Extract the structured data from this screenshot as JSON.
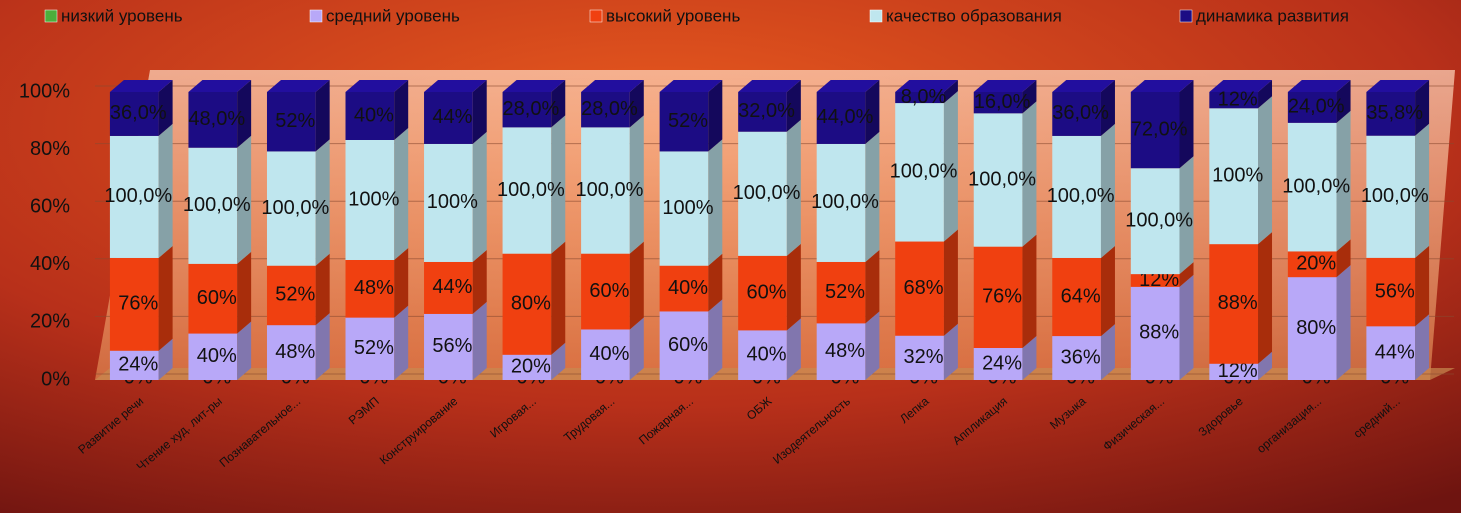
{
  "chart_data": {
    "type": "bar",
    "stacked": "percent",
    "categories": [
      "Развитие речи",
      "Чтение худ. лит-ры",
      "Познавательное...",
      "РЭМП",
      "Конструирование",
      "Игровая...",
      "Трудовая...",
      "Пожарная...",
      "ОБЖ",
      "Изодеятельность",
      "Лепка",
      "Аппликация",
      "Музыка",
      "Физическая...",
      "Здоровье",
      "организация...",
      "средний..."
    ],
    "series": [
      {
        "name": "низкий уровень",
        "color": "#4cae3c",
        "values": [
          0,
          0,
          0,
          0,
          0,
          0,
          0,
          0,
          0,
          0,
          0,
          0,
          0,
          0,
          0,
          0,
          0
        ],
        "value_labels": [
          "0%",
          "0%",
          "0%",
          "0%",
          "0%",
          "0%",
          "0%",
          "0%",
          "0%",
          "0%",
          "0%",
          "0%",
          "0%",
          "0%",
          "0%",
          "0%",
          "0%"
        ]
      },
      {
        "name": "средний уровень",
        "color": "#b8a8f8",
        "values": [
          24,
          40,
          48,
          52,
          56,
          20,
          40,
          60,
          40,
          48,
          32,
          24,
          36,
          88,
          12,
          80,
          44
        ],
        "value_labels": [
          "24%",
          "40%",
          "48%",
          "52%",
          "56%",
          "20%",
          "40%",
          "60%",
          "40%",
          "48%",
          "32%",
          "24%",
          "36%",
          "88%",
          "12%",
          "80%",
          "44%"
        ]
      },
      {
        "name": "высокий уровень",
        "color": "#f04010",
        "values": [
          76,
          60,
          52,
          48,
          44,
          80,
          60,
          40,
          60,
          52,
          68,
          76,
          64,
          12,
          88,
          20,
          56
        ],
        "value_labels": [
          "76%",
          "60%",
          "52%",
          "48%",
          "44%",
          "80%",
          "60%",
          "40%",
          "60%",
          "52%",
          "68%",
          "76%",
          "64%",
          "12%",
          "88%",
          "20%",
          "56%"
        ]
      },
      {
        "name": "качество образования",
        "color": "#bfe6ee",
        "values": [
          100,
          100,
          100,
          100,
          100,
          100,
          100,
          100,
          100,
          100,
          100,
          100,
          100,
          100,
          100,
          100,
          100
        ],
        "value_labels": [
          "100,0%",
          "100,0%",
          "100,0%",
          "100%",
          "100%",
          "100,0%",
          "100,0%",
          "100%",
          "100,0%",
          "100,0%",
          "100,0%",
          "100,0%",
          "100,0%",
          "100,0%",
          "100%",
          "100,0%",
          "100,0%"
        ]
      },
      {
        "name": "динамика развития",
        "color": "#1c0c84",
        "values": [
          36,
          48,
          52,
          40,
          44,
          28,
          28,
          52,
          32,
          44,
          8,
          16,
          36,
          72,
          12,
          24,
          35.8
        ],
        "value_labels": [
          "36,0%",
          "48,0%",
          "52%",
          "40%",
          "44%",
          "28,0%",
          "28,0%",
          "52%",
          "32,0%",
          "44,0%",
          "8,0%",
          "16,0%",
          "36,0%",
          "72,0%",
          "12%",
          "24,0%",
          "35,8%"
        ]
      }
    ],
    "ylim": [
      0,
      100
    ],
    "yticks": [
      {
        "value": 0,
        "label": "0%"
      },
      {
        "value": 20,
        "label": "20%"
      },
      {
        "value": 40,
        "label": "40%"
      },
      {
        "value": 60,
        "label": "60%"
      },
      {
        "value": 80,
        "label": "80%"
      },
      {
        "value": 100,
        "label": "100%"
      }
    ],
    "grid": true,
    "legend": "top"
  }
}
